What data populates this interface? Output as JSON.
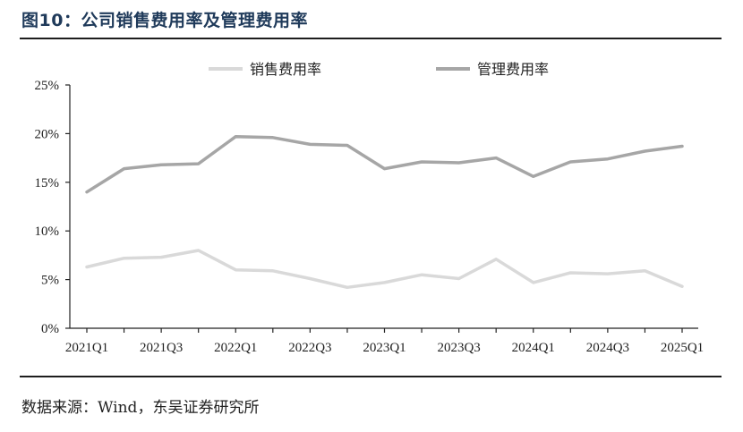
{
  "header": {
    "title": "图10：公司销售费用率及管理费用率"
  },
  "footer": {
    "source": "数据来源：Wind，东吴证券研究所"
  },
  "chart_data": {
    "type": "line",
    "x": [
      "2021Q1",
      "2021Q2",
      "2021Q3",
      "2021Q4",
      "2022Q1",
      "2022Q2",
      "2022Q3",
      "2022Q4",
      "2023Q1",
      "2023Q2",
      "2023Q3",
      "2023Q4",
      "2024Q1",
      "2024Q2",
      "2024Q3",
      "2024Q4",
      "2025Q1"
    ],
    "x_tick_labels": [
      "2021Q1",
      "2021Q3",
      "2022Q1",
      "2022Q3",
      "2023Q1",
      "2023Q3",
      "2024Q1",
      "2024Q3",
      "2025Q1"
    ],
    "y_tick_labels": [
      "0%",
      "5%",
      "10%",
      "15%",
      "20%",
      "25%"
    ],
    "ylim": [
      0,
      25
    ],
    "y_unit": "%",
    "legend_position": "top",
    "grid": false,
    "series": [
      {
        "name": "销售费用率",
        "color": "#d9d9d9",
        "values": [
          6.3,
          7.2,
          7.3,
          8.0,
          6.0,
          5.9,
          5.1,
          4.2,
          4.7,
          5.5,
          5.1,
          7.1,
          4.7,
          5.7,
          5.6,
          5.9,
          4.3
        ]
      },
      {
        "name": "管理费用率",
        "color": "#a6a6a6",
        "values": [
          14.0,
          16.4,
          16.8,
          16.9,
          19.7,
          19.6,
          18.9,
          18.8,
          16.4,
          17.1,
          17.0,
          17.5,
          15.6,
          17.1,
          17.4,
          18.2,
          18.7
        ]
      }
    ]
  }
}
